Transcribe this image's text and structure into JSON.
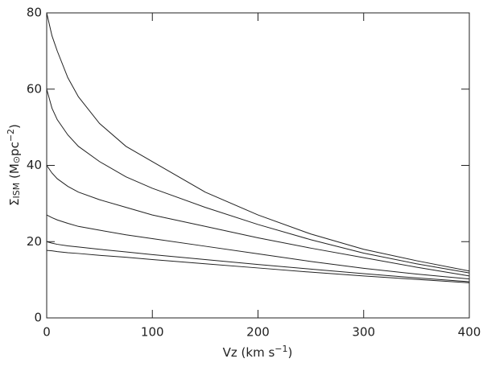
{
  "chart_data": {
    "type": "line",
    "xlabel": [
      {
        "text": "Vz  (km s"
      },
      {
        "text": "−1",
        "shift": "sup"
      },
      {
        "text": ")"
      }
    ],
    "ylabel": [
      {
        "text": "Σ"
      },
      {
        "text": "ISM",
        "shift": "sub"
      },
      {
        "text": "  (M"
      },
      {
        "text": "⊙",
        "shift": "sub"
      },
      {
        "text": "pc"
      },
      {
        "text": "−2",
        "shift": "sup"
      },
      {
        "text": ")"
      }
    ],
    "x": [
      0,
      5,
      10,
      20,
      30,
      50,
      75,
      100,
      150,
      200,
      250,
      300,
      350,
      400
    ],
    "series": [
      {
        "color": "#222222",
        "values": [
          80,
          74,
          70,
          63,
          58,
          51,
          45,
          41,
          33,
          27,
          22,
          18,
          15,
          12.3
        ]
      },
      {
        "color": "#222222",
        "values": [
          60,
          55,
          52,
          48,
          45,
          41,
          37,
          34,
          29,
          24.5,
          20.5,
          17,
          14.2,
          11.8
        ]
      },
      {
        "color": "#222222",
        "values": [
          40,
          38,
          36.5,
          34.5,
          33,
          31,
          29,
          27,
          24,
          21,
          18.3,
          15.8,
          13.3,
          11
        ]
      },
      {
        "color": "#222222",
        "values": [
          27,
          26.3,
          25.7,
          24.8,
          24,
          23,
          21.8,
          20.8,
          18.8,
          16.8,
          14.8,
          13,
          11.5,
          10.2
        ]
      },
      {
        "color": "#222222",
        "values": [
          20,
          19.6,
          19.3,
          18.9,
          18.6,
          18,
          17.3,
          16.6,
          15.3,
          14,
          12.8,
          11.6,
          10.5,
          9.5
        ]
      },
      {
        "color": "#222222",
        "values": [
          17.7,
          17.6,
          17.4,
          17.1,
          16.9,
          16.4,
          15.9,
          15.3,
          14.2,
          13.1,
          12,
          11,
          10.1,
          9.2
        ]
      }
    ],
    "xlim": [
      0,
      400
    ],
    "xticks": [
      0,
      100,
      200,
      300,
      400
    ],
    "ylim": [
      0,
      80
    ],
    "yticks": [
      0,
      20,
      40,
      60,
      80
    ]
  }
}
